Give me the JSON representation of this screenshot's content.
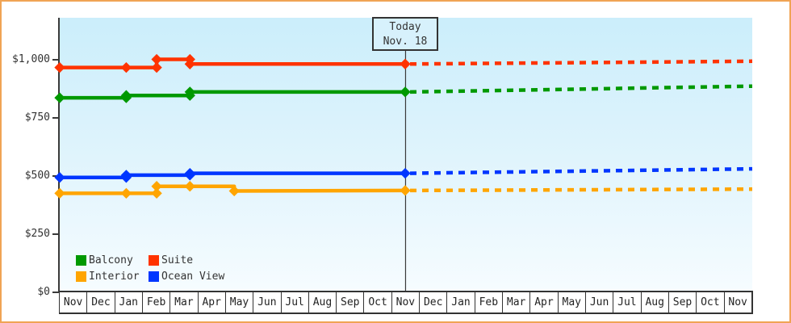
{
  "today_box": {
    "line1": "Today",
    "line2": "Nov. 18"
  },
  "chart_data": {
    "type": "line",
    "title": "",
    "x_axis": {
      "months": [
        "Nov",
        "Dec",
        "Jan",
        "Feb",
        "Mar",
        "Apr",
        "May",
        "Jun",
        "Jul",
        "Aug",
        "Sep",
        "Oct",
        "Nov",
        "Dec",
        "Jan",
        "Feb",
        "Mar",
        "Apr",
        "May",
        "Jun",
        "Jul",
        "Aug",
        "Sep",
        "Oct",
        "Nov"
      ]
    },
    "y_axis": {
      "ticks": [
        0,
        250,
        500,
        750,
        1000
      ],
      "tick_labels": [
        "$0",
        "$250",
        "$500",
        "$750",
        "$1,000"
      ],
      "range": [
        0,
        1000
      ],
      "unit": "USD"
    },
    "today": {
      "month_offset": 12.47,
      "label": "Today",
      "date": "Nov. 18"
    },
    "series": [
      {
        "name": "Suite",
        "color": "#ff3300",
        "solid": [
          [
            0,
            965
          ],
          [
            2.4,
            965
          ],
          [
            3.5,
            965
          ],
          [
            3.5,
            1000
          ],
          [
            4.7,
            1000
          ],
          [
            4.7,
            980
          ],
          [
            12.47,
            980
          ]
        ],
        "markers": [
          [
            0,
            965
          ],
          [
            2.4,
            965
          ],
          [
            3.5,
            965
          ],
          [
            3.5,
            1000
          ],
          [
            4.7,
            1000
          ],
          [
            4.7,
            980
          ],
          [
            12.47,
            980
          ]
        ],
        "dashed": [
          [
            12.47,
            980
          ],
          [
            25,
            992
          ]
        ]
      },
      {
        "name": "Balcony",
        "color": "#009900",
        "solid": [
          [
            0,
            835
          ],
          [
            2.4,
            835
          ],
          [
            2.4,
            845
          ],
          [
            4.7,
            845
          ],
          [
            4.7,
            860
          ],
          [
            12.47,
            860
          ]
        ],
        "markers": [
          [
            0,
            835
          ],
          [
            2.4,
            835
          ],
          [
            2.4,
            845
          ],
          [
            4.7,
            845
          ],
          [
            4.7,
            860
          ],
          [
            12.47,
            860
          ]
        ],
        "dashed": [
          [
            12.47,
            860
          ],
          [
            25,
            885
          ]
        ]
      },
      {
        "name": "Ocean View",
        "color": "#0036ff",
        "solid": [
          [
            0,
            493
          ],
          [
            2.4,
            493
          ],
          [
            2.4,
            503
          ],
          [
            4.7,
            503
          ],
          [
            4.7,
            511
          ],
          [
            12.47,
            511
          ]
        ],
        "markers": [
          [
            0,
            493
          ],
          [
            2.4,
            493
          ],
          [
            2.4,
            503
          ],
          [
            4.7,
            503
          ],
          [
            4.7,
            511
          ],
          [
            12.47,
            511
          ]
        ],
        "dashed": [
          [
            12.47,
            511
          ],
          [
            25,
            530
          ]
        ]
      },
      {
        "name": "Interior",
        "color": "#ffa500",
        "solid": [
          [
            0,
            425
          ],
          [
            2.4,
            425
          ],
          [
            3.5,
            425
          ],
          [
            3.5,
            455
          ],
          [
            4.7,
            455
          ],
          [
            6.3,
            455
          ],
          [
            6.3,
            435
          ],
          [
            12.47,
            437
          ]
        ],
        "markers": [
          [
            0,
            425
          ],
          [
            2.4,
            425
          ],
          [
            3.5,
            425
          ],
          [
            3.5,
            455
          ],
          [
            4.7,
            455
          ],
          [
            6.3,
            435
          ],
          [
            12.47,
            437
          ]
        ],
        "dashed": [
          [
            12.47,
            437
          ],
          [
            25,
            443
          ]
        ]
      }
    ],
    "legend": {
      "order": [
        "Balcony",
        "Suite",
        "Interior",
        "Ocean View"
      ],
      "position": "bottom-left-inside"
    },
    "frame_color": "#f0a455",
    "plot_bg_top": "#cbeefb",
    "plot_bg_bottom": "#f6fcff"
  }
}
